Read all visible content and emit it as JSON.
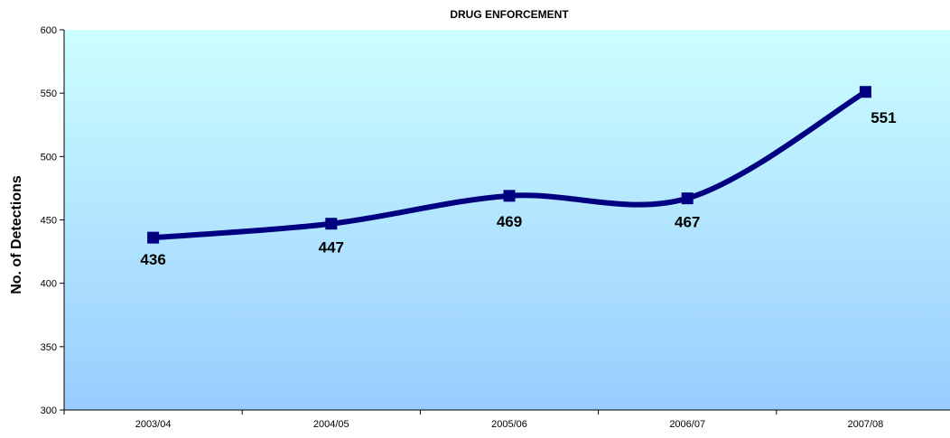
{
  "chart_data": {
    "type": "line",
    "title": "DRUG ENFORCEMENT",
    "xlabel": "",
    "ylabel": "No. of Detections",
    "categories": [
      "2003/04",
      "2004/05",
      "2005/06",
      "2006/07",
      "2007/08"
    ],
    "series": [
      {
        "values": [
          436,
          447,
          469,
          467,
          551
        ]
      }
    ],
    "ylim": [
      300,
      600
    ],
    "yticks": [
      300,
      350,
      400,
      450,
      500,
      550,
      600
    ],
    "data_labels": [
      "436",
      "447",
      "469",
      "467",
      "551"
    ],
    "grid": false,
    "smoothed": true,
    "colors": {
      "line": "#000080",
      "plot_top": "#ccffff",
      "plot_bottom": "#99ccff",
      "axis": "#000000"
    }
  }
}
